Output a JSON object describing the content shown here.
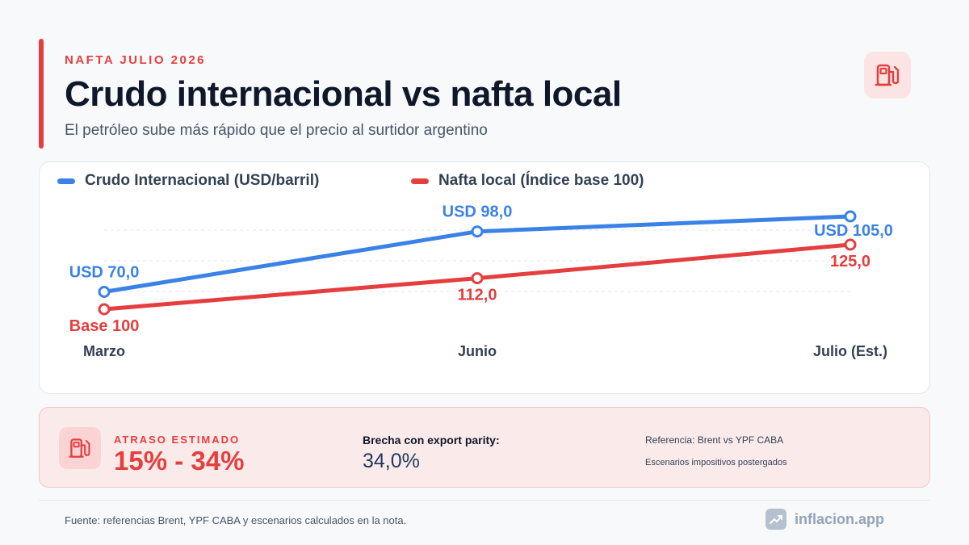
{
  "header": {
    "kicker": "NAFTA JULIO 2026",
    "title": "Crudo internacional vs nafta local",
    "subtitle": "El petróleo sube más rápido que el precio al surtidor argentino",
    "icon": "fuel-pump-icon"
  },
  "chart_data": {
    "type": "line",
    "categories": [
      "Marzo",
      "Junio",
      "Julio (Est.)"
    ],
    "series": [
      {
        "name": "Crudo Internacional (USD/barril)",
        "color": "#3b82e6",
        "values": [
          70,
          98,
          105
        ],
        "labels": [
          "USD 70,0",
          "USD 98,0",
          "USD 105,0"
        ]
      },
      {
        "name": "Nafta local (Índice base 100)",
        "color": "#e53e3e",
        "values": [
          100,
          112,
          125
        ],
        "labels": [
          "Base 100",
          "112,0",
          "125,0"
        ]
      }
    ],
    "grid": true,
    "legend": "top-left"
  },
  "gap": {
    "label": "ATRASO ESTIMADO",
    "value": "15% - 34%",
    "icon": "fuel-pump-icon"
  },
  "parity": {
    "label": "Brecha con export parity:",
    "value": "34,0%"
  },
  "reference": {
    "line1": "Referencia: Brent vs YPF CABA",
    "line2": "Escenarios impositivos postergados"
  },
  "footer": {
    "source": "Fuente: referencias Brent, YPF CABA y escenarios calculados en la nota.",
    "brand": "inflacion.app",
    "brand_icon": "trend-chart-icon"
  },
  "colors": {
    "accent": "#e53e3e",
    "blue": "#3b82e6",
    "text": "#0f172a"
  }
}
